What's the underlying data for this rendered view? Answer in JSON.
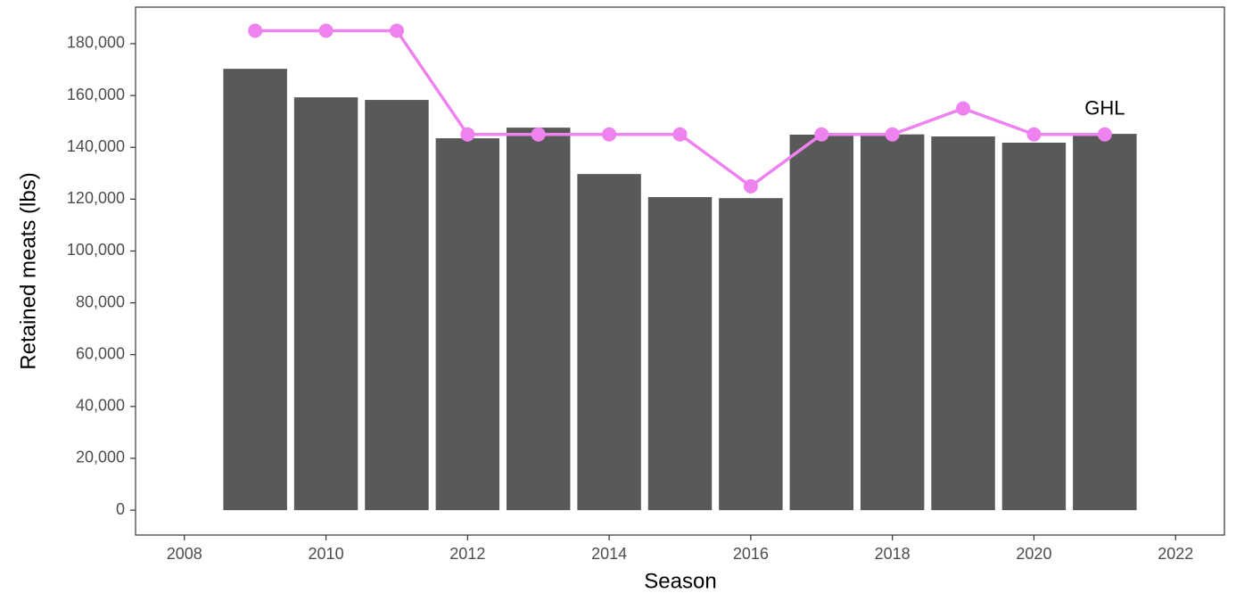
{
  "chart_data": {
    "type": "bar",
    "x": [
      2009,
      2010,
      2011,
      2012,
      2013,
      2014,
      2015,
      2016,
      2017,
      2018,
      2019,
      2020,
      2021
    ],
    "series": [
      {
        "type": "bar",
        "color": "#595959",
        "values": [
          170300,
          159300,
          158300,
          143500,
          147600,
          129700,
          120800,
          120400,
          144900,
          145000,
          144200,
          141800,
          145200
        ]
      },
      {
        "type": "line",
        "name": "GHL",
        "color": "#ee82ee",
        "values": [
          185000,
          185000,
          185000,
          145000,
          145000,
          145000,
          145000,
          125000,
          145000,
          145000,
          155000,
          145000,
          145000
        ]
      }
    ],
    "xlabel": "Season",
    "ylabel": "Retained meats (lbs)",
    "xlim": [
      2007.31,
      2022.69
    ],
    "xticks": [
      2008,
      2010,
      2012,
      2014,
      2016,
      2018,
      2020,
      2022
    ],
    "ylim": [
      -9600,
      194100
    ],
    "yticks": [
      0,
      {
        "value": 20000,
        "label": "20,000"
      },
      {
        "value": 40000,
        "label": "40,000"
      },
      {
        "value": 60000,
        "label": "60,000"
      },
      {
        "value": 80000,
        "label": "80,000"
      },
      {
        "value": 100000,
        "label": "100,000"
      },
      {
        "value": 120000,
        "label": "120,000"
      },
      {
        "value": 140000,
        "label": "140,000"
      },
      {
        "value": 160000,
        "label": "160,000"
      },
      {
        "value": 180000,
        "label": "180,000"
      }
    ],
    "grid": false
  }
}
